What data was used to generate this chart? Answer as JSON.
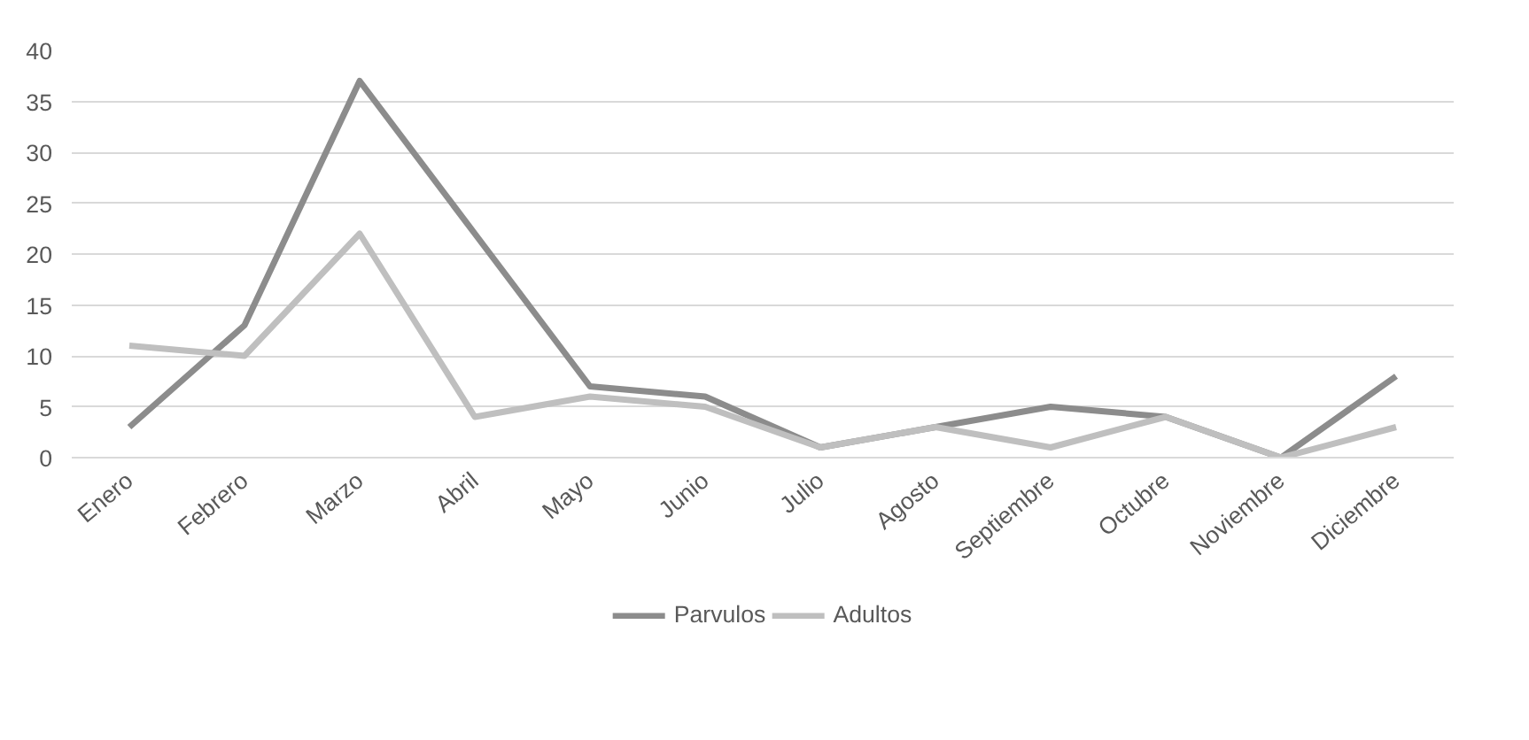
{
  "chart_data": {
    "type": "line",
    "categories": [
      "Enero",
      "Febrero",
      "Marzo",
      "Abril",
      "Mayo",
      "Junio",
      "Julio",
      "Agosto",
      "Septiembre",
      "Octubre",
      "Noviembre",
      "Diciembre"
    ],
    "series": [
      {
        "name": "Parvulos",
        "color": "#8c8c8c",
        "values": [
          3,
          13,
          37,
          22,
          7,
          6,
          1,
          3,
          5,
          4,
          0,
          8
        ]
      },
      {
        "name": "Adultos",
        "color": "#bfbfbf",
        "values": [
          11,
          10,
          22,
          4,
          6,
          5,
          1,
          3,
          1,
          4,
          0,
          3
        ]
      }
    ],
    "ylim": [
      0,
      40
    ],
    "yticks": [
      0,
      5,
      10,
      15,
      20,
      25,
      30,
      35,
      40
    ],
    "grid": "y",
    "legend": "bottom",
    "marker": "none",
    "line_style": "solid"
  }
}
